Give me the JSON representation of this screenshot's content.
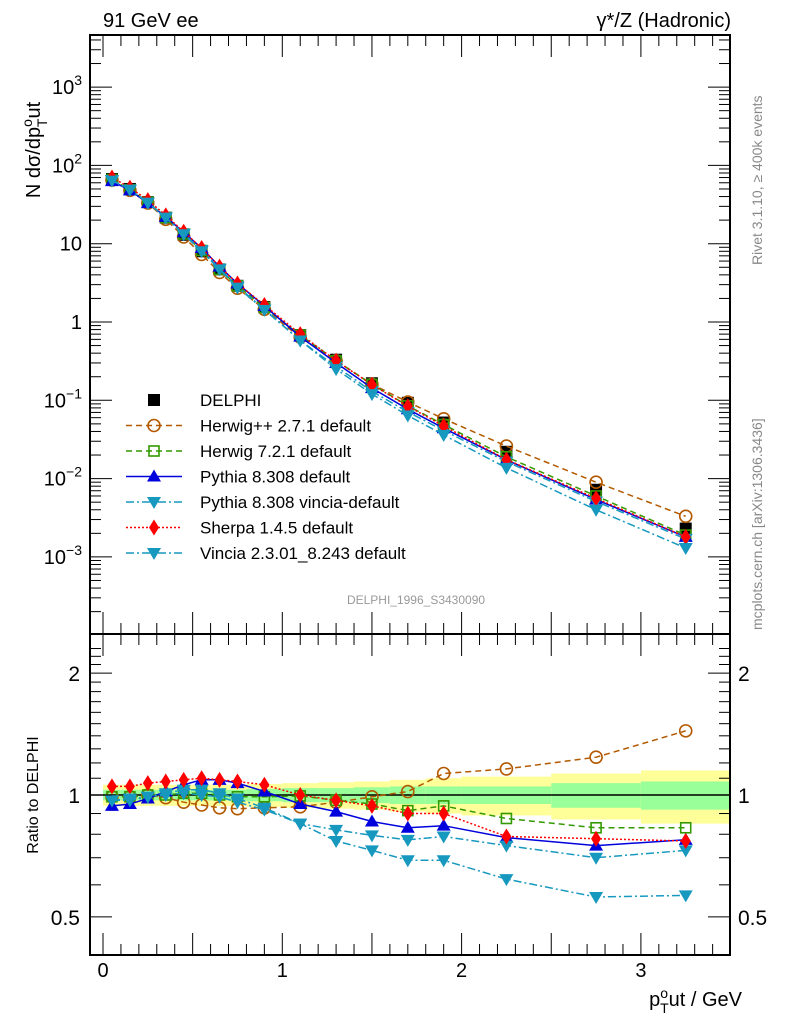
{
  "header": {
    "left_title": "91 GeV ee",
    "right_title": "γ*/Z (Hadronic)"
  },
  "side_labels": {
    "rivet": "Rivet 3.1.10, ≥ 400k events",
    "mcplots": "mcplots.cern.ch [arXiv:1306.3436]"
  },
  "watermark": "DELPHI_1996_S3430090",
  "chart_data": [
    {
      "type": "line",
      "panel": "main",
      "title": "",
      "ylabel": "N dσ/dp_T^out",
      "ylabel_parts": {
        "main": "N dσ/dp",
        "sup": "o",
        "sub": "T",
        "tail": "ut"
      },
      "xlabel": "",
      "yscale": "log",
      "ylim": [
        0.000105,
        4500
      ],
      "xlim": [
        -0.07,
        3.55
      ],
      "y_tick_labels": [
        {
          "value": 1000,
          "base": "10",
          "exp": "3"
        },
        {
          "value": 100,
          "base": "10",
          "exp": "2"
        },
        {
          "value": 10,
          "base": "10",
          "exp": ""
        },
        {
          "value": 1,
          "base": "1",
          "exp": ""
        },
        {
          "value": 0.1,
          "base": "10",
          "exp": "−1"
        },
        {
          "value": 0.01,
          "base": "10",
          "exp": "−2"
        },
        {
          "value": 0.001,
          "base": "10",
          "exp": "−3"
        }
      ],
      "legend_position": "center-left",
      "x": [
        0.05,
        0.15,
        0.25,
        0.35,
        0.45,
        0.55,
        0.65,
        0.75,
        0.9,
        1.1,
        1.3,
        1.5,
        1.7,
        1.9,
        2.25,
        2.75,
        3.25
      ],
      "series": [
        {
          "name": "DELPHI",
          "color": "#000000",
          "marker": "square-filled",
          "line": "none",
          "values": [
            67,
            50,
            34,
            21.5,
            13,
            8,
            4.7,
            2.9,
            1.55,
            0.68,
            0.33,
            0.165,
            0.093,
            0.052,
            0.022,
            0.0072,
            0.0023
          ]
        },
        {
          "name": "Herwig++ 2.7.1 default",
          "color": "#b35900",
          "marker": "circle-open",
          "line": "dashed",
          "values": [
            65,
            48,
            33,
            20.5,
            12.2,
            7.3,
            4.3,
            2.7,
            1.45,
            0.64,
            0.32,
            0.16,
            0.095,
            0.058,
            0.026,
            0.009,
            0.0033
          ]
        },
        {
          "name": "Herwig 7.2.1 default",
          "color": "#339900",
          "marker": "square-open",
          "line": "dashed",
          "values": [
            66,
            49,
            34,
            21.6,
            13.3,
            8.2,
            4.7,
            2.9,
            1.53,
            0.68,
            0.32,
            0.16,
            0.085,
            0.049,
            0.019,
            0.006,
            0.0019
          ]
        },
        {
          "name": "Pythia 8.308 default",
          "color": "#0000dd",
          "marker": "triangle-up",
          "line": "solid",
          "values": [
            63,
            48,
            33,
            22,
            14,
            8.8,
            5.1,
            3.1,
            1.6,
            0.65,
            0.3,
            0.143,
            0.077,
            0.044,
            0.0174,
            0.0054,
            0.0018
          ]
        },
        {
          "name": "Pythia 8.308 vincia-default",
          "color": "#1799bf",
          "marker": "triangle-down",
          "line": "dashdot",
          "values": [
            65,
            49,
            33.5,
            21.8,
            13.5,
            8.3,
            4.8,
            2.85,
            1.45,
            0.58,
            0.27,
            0.13,
            0.071,
            0.041,
            0.0165,
            0.0051,
            0.0017
          ]
        },
        {
          "name": "Sherpa 1.4.5 default",
          "color": "#ff0000",
          "marker": "diamond",
          "line": "dotted",
          "values": [
            70,
            52,
            36,
            23,
            14.2,
            8.8,
            5.1,
            3.1,
            1.65,
            0.7,
            0.32,
            0.158,
            0.084,
            0.047,
            0.0175,
            0.0056,
            0.0018
          ]
        },
        {
          "name": "Vincia 2.3.01_8.243 default",
          "color": "#1799bf",
          "marker": "triangle-down",
          "line": "dashdot",
          "values": [
            64,
            49,
            33.5,
            21.5,
            13.2,
            8.0,
            4.7,
            2.75,
            1.43,
            0.58,
            0.25,
            0.12,
            0.064,
            0.036,
            0.0137,
            0.004,
            0.0013
          ]
        }
      ]
    },
    {
      "type": "line",
      "panel": "ratio",
      "ylabel": "Ratio to DELPHI",
      "xlabel": "p_T^out / GeV",
      "xlabel_parts": {
        "main": "p",
        "sup": "o",
        "sub": "T",
        "tail": "ut / GeV"
      },
      "yscale": "log",
      "ylim": [
        0.4,
        2.4
      ],
      "xlim": [
        -0.07,
        3.55
      ],
      "x_ticks": [
        0,
        1,
        2,
        3
      ],
      "x_tick_labels": [
        "0",
        "1",
        "2",
        "3"
      ],
      "y_ticks": [
        0.5,
        1,
        2
      ],
      "y_tick_labels": [
        "0.5",
        "1",
        "2"
      ],
      "reference_line": 1,
      "uncertainty_bands": {
        "x_edges": [
          0.0,
          0.1,
          0.2,
          0.3,
          0.4,
          0.5,
          0.6,
          0.7,
          0.8,
          1.0,
          1.2,
          1.4,
          1.6,
          1.8,
          2.0,
          2.5,
          3.0,
          3.5
        ],
        "stat_rel": [
          0.03,
          0.03,
          0.03,
          0.03,
          0.03,
          0.03,
          0.03,
          0.03,
          0.035,
          0.04,
          0.04,
          0.045,
          0.05,
          0.05,
          0.05,
          0.07,
          0.08
        ],
        "total_rel": [
          0.06,
          0.06,
          0.06,
          0.06,
          0.06,
          0.06,
          0.06,
          0.06,
          0.065,
          0.07,
          0.075,
          0.08,
          0.09,
          0.1,
          0.11,
          0.13,
          0.15
        ],
        "stat_color": "#99ff99",
        "total_color": "#ffff99"
      },
      "x": [
        0.05,
        0.15,
        0.25,
        0.35,
        0.45,
        0.55,
        0.65,
        0.75,
        0.9,
        1.1,
        1.3,
        1.5,
        1.7,
        1.9,
        2.25,
        2.75,
        3.25
      ],
      "series": [
        {
          "name": "Herwig++ 2.7.1 default",
          "color": "#b35900",
          "marker": "circle-open",
          "line": "dashed",
          "values": [
            0.99,
            0.99,
            1.0,
            0.985,
            0.96,
            0.945,
            0.93,
            0.925,
            0.93,
            0.935,
            0.96,
            0.99,
            1.02,
            1.13,
            1.16,
            1.24,
            1.44
          ]
        },
        {
          "name": "Herwig 7.2.1 default",
          "color": "#339900",
          "marker": "square-open",
          "line": "dashed",
          "values": [
            0.99,
            0.99,
            1.0,
            1.0,
            1.01,
            1.01,
            1.0,
            0.99,
            0.99,
            0.995,
            0.97,
            0.95,
            0.915,
            0.94,
            0.875,
            0.83,
            0.83
          ]
        },
        {
          "name": "Pythia 8.308 default",
          "color": "#0000dd",
          "marker": "triangle-up",
          "line": "solid",
          "values": [
            0.94,
            0.95,
            0.98,
            1.02,
            1.06,
            1.09,
            1.09,
            1.07,
            1.02,
            0.95,
            0.91,
            0.86,
            0.83,
            0.84,
            0.785,
            0.75,
            0.775
          ]
        },
        {
          "name": "Pythia 8.308 vincia-default",
          "color": "#1799bf",
          "marker": "triangle-down",
          "line": "dashdot",
          "values": [
            0.97,
            0.97,
            0.99,
            1.01,
            1.03,
            1.03,
            1.01,
            0.98,
            0.93,
            0.85,
            0.82,
            0.795,
            0.775,
            0.79,
            0.75,
            0.7,
            0.73
          ]
        },
        {
          "name": "Sherpa 1.4.5 default",
          "color": "#ff0000",
          "marker": "diamond",
          "line": "dotted",
          "values": [
            1.05,
            1.05,
            1.07,
            1.08,
            1.09,
            1.1,
            1.09,
            1.08,
            1.06,
            1.0,
            0.97,
            0.94,
            0.9,
            0.9,
            0.79,
            0.78,
            0.77
          ]
        },
        {
          "name": "Vincia 2.3.01_8.243 default",
          "color": "#1799bf",
          "marker": "triangle-down",
          "line": "dashdot",
          "values": [
            0.97,
            0.98,
            0.99,
            1.0,
            1.01,
            1.0,
            0.99,
            0.96,
            0.92,
            0.85,
            0.77,
            0.73,
            0.69,
            0.69,
            0.62,
            0.56,
            0.565
          ]
        }
      ]
    }
  ]
}
